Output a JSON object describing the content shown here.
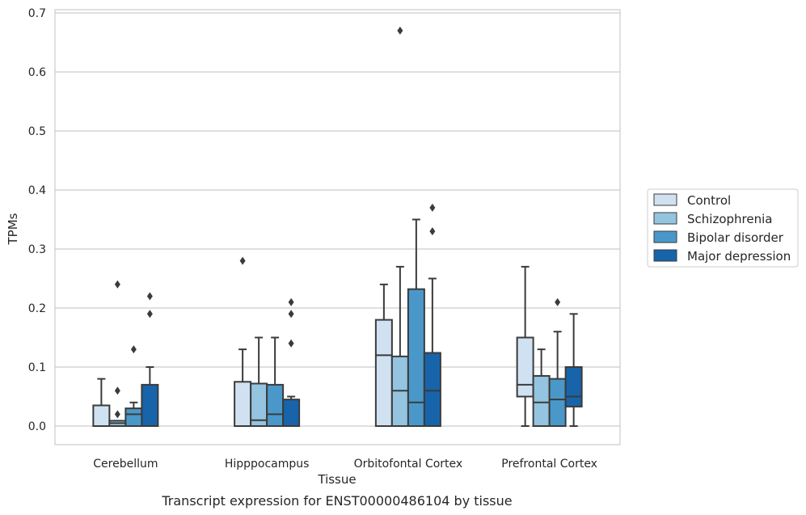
{
  "chart_data": {
    "type": "box",
    "title": "",
    "caption": "Transcript expression for ENST00000486104 by tissue",
    "xlabel": "Tissue",
    "ylabel": "TPMs",
    "ylim": [
      -0.03,
      0.705
    ],
    "yticks": [
      "0.0",
      "0.1",
      "0.2",
      "0.3",
      "0.4",
      "0.5",
      "0.6",
      "0.7"
    ],
    "grid": "horizontal",
    "legend_position": "right",
    "categories": [
      "Cerebellum",
      "Hipppocampus",
      "Orbitofontal Cortex",
      "Prefrontal Cortex"
    ],
    "series": [
      {
        "name": "Control",
        "color": "#d0e1f2",
        "boxes": [
          {
            "whislo": 0.0,
            "q1": 0.0,
            "med": 0.0,
            "q3": 0.035,
            "whishi": 0.08,
            "fliers": []
          },
          {
            "whislo": 0.0,
            "q1": 0.0,
            "med": 0.0,
            "q3": 0.075,
            "whishi": 0.13,
            "fliers": [
              0.28
            ]
          },
          {
            "whislo": 0.0,
            "q1": 0.0,
            "med": 0.12,
            "q3": 0.18,
            "whishi": 0.24,
            "fliers": []
          },
          {
            "whislo": 0.0,
            "q1": 0.05,
            "med": 0.07,
            "q3": 0.15,
            "whishi": 0.27,
            "fliers": []
          }
        ]
      },
      {
        "name": "Schizophrenia",
        "color": "#94c4df",
        "boxes": [
          {
            "whislo": 0.0,
            "q1": 0.0,
            "med": 0.005,
            "q3": 0.009,
            "whishi": 0.009,
            "fliers": [
              0.02,
              0.06,
              0.24
            ]
          },
          {
            "whislo": 0.0,
            "q1": 0.0,
            "med": 0.01,
            "q3": 0.072,
            "whishi": 0.15,
            "fliers": []
          },
          {
            "whislo": 0.0,
            "q1": 0.0,
            "med": 0.06,
            "q3": 0.118,
            "whishi": 0.27,
            "fliers": [
              0.67
            ]
          },
          {
            "whislo": 0.0,
            "q1": 0.0,
            "med": 0.04,
            "q3": 0.085,
            "whishi": 0.13,
            "fliers": []
          }
        ]
      },
      {
        "name": "Bipolar disorder",
        "color": "#4a98c9",
        "boxes": [
          {
            "whislo": 0.0,
            "q1": 0.0,
            "med": 0.02,
            "q3": 0.03,
            "whishi": 0.04,
            "fliers": [
              0.13
            ]
          },
          {
            "whislo": 0.0,
            "q1": 0.0,
            "med": 0.02,
            "q3": 0.07,
            "whishi": 0.15,
            "fliers": []
          },
          {
            "whislo": 0.0,
            "q1": 0.0,
            "med": 0.04,
            "q3": 0.232,
            "whishi": 0.35,
            "fliers": []
          },
          {
            "whislo": 0.0,
            "q1": 0.0,
            "med": 0.045,
            "q3": 0.08,
            "whishi": 0.16,
            "fliers": [
              0.21
            ]
          }
        ]
      },
      {
        "name": "Major depression",
        "color": "#1764ab",
        "boxes": [
          {
            "whislo": 0.0,
            "q1": 0.0,
            "med": 0.0,
            "q3": 0.07,
            "whishi": 0.1,
            "fliers": [
              0.19,
              0.22
            ]
          },
          {
            "whislo": 0.0,
            "q1": 0.0,
            "med": 0.0,
            "q3": 0.045,
            "whishi": 0.05,
            "fliers": [
              0.14,
              0.19,
              0.21
            ]
          },
          {
            "whislo": 0.0,
            "q1": 0.0,
            "med": 0.06,
            "q3": 0.124,
            "whishi": 0.25,
            "fliers": [
              0.33,
              0.37
            ]
          },
          {
            "whislo": 0.0,
            "q1": 0.033,
            "med": 0.05,
            "q3": 0.1,
            "whishi": 0.19,
            "fliers": []
          }
        ]
      }
    ]
  }
}
